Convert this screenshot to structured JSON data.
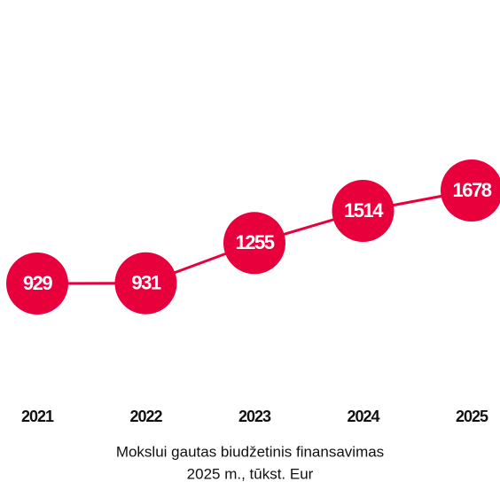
{
  "chart_data": {
    "type": "line",
    "title": "Mokslui gautas biudžetinis finansavimas",
    "subtitle": "2025 m., tūkst. Eur",
    "categories": [
      "2021",
      "2022",
      "2023",
      "2024",
      "2025"
    ],
    "values": [
      929,
      931,
      1255,
      1514,
      1678
    ],
    "color": "#e8003d"
  }
}
